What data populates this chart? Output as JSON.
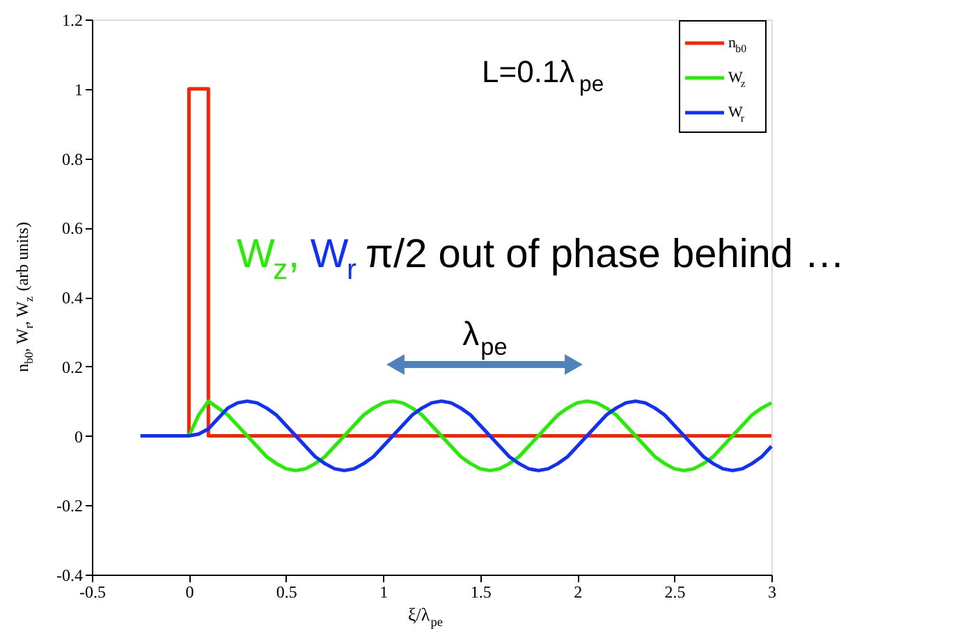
{
  "chart_data": {
    "type": "line",
    "xlabel": "ξ/λ$_{pe}$",
    "ylabel": "n$_{b0}$, W$_{r}$, W$_{z}$ (arb units)",
    "x": [
      -0.25,
      -0.2,
      -0.15,
      -0.1,
      -0.05,
      0,
      0.05,
      0.1,
      0.15,
      0.2,
      0.25,
      0.3,
      0.35,
      0.4,
      0.45,
      0.5,
      0.55,
      0.6,
      0.65,
      0.7,
      0.75,
      0.8,
      0.85,
      0.9,
      0.95,
      1,
      1.05,
      1.1,
      1.15,
      1.2,
      1.25,
      1.3,
      1.35,
      1.4,
      1.45,
      1.5,
      1.55,
      1.6,
      1.65,
      1.7,
      1.75,
      1.8,
      1.85,
      1.9,
      1.95,
      2,
      2.05,
      2.1,
      2.15,
      2.2,
      2.25,
      2.3,
      2.35,
      2.4,
      2.45,
      2.5,
      2.55,
      2.6,
      2.65,
      2.7,
      2.75,
      2.8,
      2.85,
      2.9,
      2.95,
      3
    ],
    "series": [
      {
        "name": "n$_{b0}$",
        "color": "#ff2200",
        "x": [
          0,
          0,
          0.1,
          0.1,
          3
        ],
        "values": [
          0,
          1,
          1,
          0,
          0
        ]
      },
      {
        "name": "W$_{z}$",
        "color": "#22ee00",
        "values": [
          null,
          null,
          null,
          null,
          null,
          0,
          0.06,
          0.1,
          0.08,
          0.06,
          0.03,
          0,
          -0.03,
          -0.06,
          -0.08,
          -0.095,
          -0.1,
          -0.095,
          -0.08,
          -0.06,
          -0.03,
          0,
          0.03,
          0.06,
          0.08,
          0.095,
          0.1,
          0.095,
          0.08,
          0.06,
          0.03,
          0,
          -0.03,
          -0.06,
          -0.08,
          -0.095,
          -0.1,
          -0.095,
          -0.08,
          -0.06,
          -0.03,
          0,
          0.03,
          0.06,
          0.08,
          0.095,
          0.1,
          0.095,
          0.08,
          0.06,
          0.03,
          0,
          -0.03,
          -0.06,
          -0.08,
          -0.095,
          -0.1,
          -0.095,
          -0.08,
          -0.06,
          -0.03,
          0,
          0.03,
          0.06,
          0.08,
          0.095
        ]
      },
      {
        "name": "W$_{r}$",
        "color": "#1030ff",
        "values": [
          0,
          0,
          0,
          0,
          0,
          0,
          0.005,
          0.02,
          0.05,
          0.08,
          0.095,
          0.1,
          0.095,
          0.08,
          0.06,
          0.03,
          0,
          -0.03,
          -0.06,
          -0.08,
          -0.095,
          -0.1,
          -0.095,
          -0.08,
          -0.06,
          -0.03,
          0,
          0.03,
          0.06,
          0.08,
          0.095,
          0.1,
          0.095,
          0.08,
          0.06,
          0.03,
          0,
          -0.03,
          -0.06,
          -0.08,
          -0.095,
          -0.1,
          -0.095,
          -0.08,
          -0.06,
          -0.03,
          0,
          0.03,
          0.06,
          0.08,
          0.095,
          0.1,
          0.095,
          0.08,
          0.06,
          0.03,
          0,
          -0.03,
          -0.06,
          -0.08,
          -0.095,
          -0.1,
          -0.095,
          -0.08,
          -0.06,
          -0.03
        ]
      }
    ],
    "annotations": [
      "L=0.1λ$_{pe}$",
      "W$_{z}$,",
      "W$_{r}$",
      "π/2 out of phase behind …",
      "λ$_{pe}$"
    ],
    "xlim": [
      -0.5,
      3
    ],
    "xticks": [
      -0.5,
      0,
      0.5,
      1,
      1.5,
      2,
      2.5,
      3
    ],
    "ylim": [
      -0.4,
      1.2
    ],
    "yticks": [
      -0.4,
      -0.2,
      0,
      0.2,
      0.4,
      0.6,
      0.8,
      1,
      1.2
    ],
    "grid": false,
    "legend": "top right",
    "marker": "none",
    "line_style": "solid"
  }
}
